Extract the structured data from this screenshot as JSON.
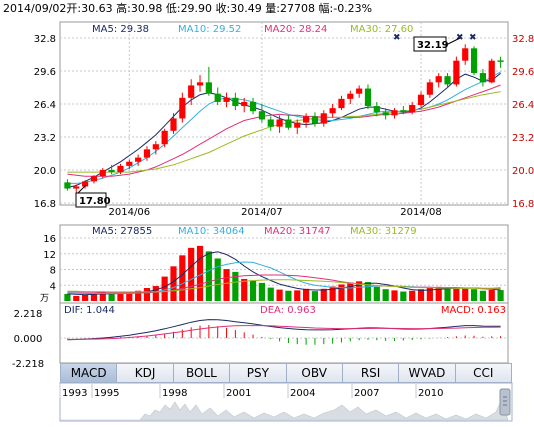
{
  "header": {
    "date": "2014/09/02",
    "open_label": "开:",
    "open": "30.63",
    "high_label": "高:",
    "high": "30.98",
    "low_label": "低:",
    "low": "29.90",
    "close_label": "收:",
    "close": "30.49",
    "volume_label": "量:",
    "volume": "27708",
    "change_label": "幅:",
    "change": "-0.23%"
  },
  "colors": {
    "up": "#ff0000",
    "down": "#00a000",
    "ma5": "#1a2a66",
    "ma10": "#33b0e0",
    "ma20": "#e0307a",
    "ma30": "#99bb22"
  },
  "chart_data": [
    {
      "type": "candlestick",
      "name": "price",
      "ylim": [
        16.8,
        32.8
      ],
      "y_ticks": [
        "32.8",
        "29.6",
        "26.4",
        "23.2",
        "20.0",
        "16.8"
      ],
      "x_ticks": [
        "2014/06",
        "2014/07",
        "2014/08"
      ],
      "legend": [
        {
          "label": "MA5: 29.38",
          "color": "#1a2a66"
        },
        {
          "label": "MA10: 29.52",
          "color": "#33b0e0"
        },
        {
          "label": "MA20: 28.24",
          "color": "#e0307a"
        },
        {
          "label": "MA30: 27.60",
          "color": "#99bb22"
        }
      ],
      "annotations": {
        "low": "17.80",
        "high": "32.19"
      },
      "series": [
        {
          "name": "MA5",
          "values": [
            18.3,
            18.5,
            18.9,
            19.3,
            19.8,
            20.3,
            20.8,
            21.4,
            22.0,
            22.7,
            23.4,
            24.3,
            25.2,
            26.1,
            26.8,
            27.3,
            27.5,
            27.3,
            27.0,
            26.6,
            26.3,
            26.1,
            25.8,
            25.4,
            25.0,
            24.7,
            24.5,
            24.4,
            24.5,
            24.6,
            24.8,
            25.1,
            25.5,
            25.9,
            26.1,
            26.1,
            25.9,
            25.7,
            25.6,
            25.7,
            26.0,
            26.6,
            27.3,
            28.0,
            28.8,
            29.3,
            29.0,
            28.6,
            28.7,
            29.38
          ]
        },
        {
          "name": "MA10",
          "values": [
            18.7,
            18.7,
            18.8,
            19.0,
            19.2,
            19.5,
            19.8,
            20.2,
            20.7,
            21.2,
            21.8,
            22.5,
            23.3,
            24.1,
            24.9,
            25.7,
            26.4,
            26.8,
            27.0,
            26.9,
            26.8,
            26.6,
            26.3,
            26.0,
            25.7,
            25.4,
            25.2,
            25.0,
            24.9,
            24.8,
            24.8,
            24.9,
            25.0,
            25.2,
            25.4,
            25.6,
            25.7,
            25.7,
            25.7,
            25.8,
            25.9,
            26.1,
            26.4,
            26.8,
            27.3,
            27.8,
            28.2,
            28.6,
            29.0,
            29.52
          ]
        },
        {
          "name": "MA20",
          "values": [
            19.6,
            19.5,
            19.4,
            19.4,
            19.4,
            19.4,
            19.5,
            19.6,
            19.8,
            20.0,
            20.3,
            20.7,
            21.1,
            21.5,
            22.0,
            22.5,
            23.0,
            23.5,
            24.0,
            24.4,
            24.8,
            25.0,
            25.2,
            25.3,
            25.4,
            25.3,
            25.3,
            25.2,
            25.2,
            25.1,
            25.1,
            25.1,
            25.1,
            25.1,
            25.2,
            25.3,
            25.4,
            25.4,
            25.5,
            25.6,
            25.7,
            25.9,
            26.1,
            26.4,
            26.7,
            27.0,
            27.3,
            27.6,
            27.9,
            28.24
          ]
        },
        {
          "name": "MA30",
          "values": [
            19.8,
            19.8,
            19.8,
            19.8,
            19.8,
            19.8,
            19.8,
            19.8,
            19.9,
            20.0,
            20.1,
            20.3,
            20.5,
            20.8,
            21.1,
            21.4,
            21.7,
            22.1,
            22.5,
            22.9,
            23.3,
            23.6,
            23.9,
            24.2,
            24.4,
            24.6,
            24.8,
            24.9,
            25.0,
            25.1,
            25.1,
            25.1,
            25.2,
            25.2,
            25.3,
            25.4,
            25.5,
            25.6,
            25.7,
            25.8,
            25.9,
            26.1,
            26.3,
            26.5,
            26.7,
            26.9,
            27.1,
            27.3,
            27.45,
            27.6
          ]
        }
      ],
      "candles": [
        {
          "o": 18.8,
          "h": 19.1,
          "l": 18.0,
          "c": 18.2
        },
        {
          "o": 18.2,
          "h": 18.6,
          "l": 17.8,
          "c": 18.4
        },
        {
          "o": 18.4,
          "h": 19.0,
          "l": 18.2,
          "c": 18.9
        },
        {
          "o": 18.9,
          "h": 19.5,
          "l": 18.7,
          "c": 19.4
        },
        {
          "o": 19.4,
          "h": 20.2,
          "l": 19.2,
          "c": 20.0
        },
        {
          "o": 20.0,
          "h": 20.5,
          "l": 19.6,
          "c": 19.8
        },
        {
          "o": 19.8,
          "h": 20.6,
          "l": 19.6,
          "c": 20.4
        },
        {
          "o": 20.4,
          "h": 21.0,
          "l": 20.1,
          "c": 20.8
        },
        {
          "o": 20.8,
          "h": 21.5,
          "l": 20.4,
          "c": 21.2
        },
        {
          "o": 21.2,
          "h": 22.3,
          "l": 20.9,
          "c": 22.0
        },
        {
          "o": 22.0,
          "h": 22.8,
          "l": 21.5,
          "c": 22.5
        },
        {
          "o": 22.5,
          "h": 24.0,
          "l": 22.2,
          "c": 23.8
        },
        {
          "o": 23.8,
          "h": 25.5,
          "l": 23.5,
          "c": 25.0
        },
        {
          "o": 25.0,
          "h": 27.5,
          "l": 24.6,
          "c": 27.0
        },
        {
          "o": 27.0,
          "h": 28.8,
          "l": 26.3,
          "c": 28.2
        },
        {
          "o": 28.2,
          "h": 29.2,
          "l": 27.6,
          "c": 28.5
        },
        {
          "o": 28.5,
          "h": 30.0,
          "l": 27.2,
          "c": 27.4
        },
        {
          "o": 27.4,
          "h": 28.0,
          "l": 26.3,
          "c": 26.6
        },
        {
          "o": 26.6,
          "h": 27.5,
          "l": 26.1,
          "c": 27.0
        },
        {
          "o": 27.0,
          "h": 27.5,
          "l": 25.8,
          "c": 26.2
        },
        {
          "o": 26.2,
          "h": 27.0,
          "l": 25.6,
          "c": 26.6
        },
        {
          "o": 26.6,
          "h": 27.0,
          "l": 25.4,
          "c": 25.7
        },
        {
          "o": 25.7,
          "h": 26.4,
          "l": 24.6,
          "c": 24.9
        },
        {
          "o": 24.9,
          "h": 25.2,
          "l": 23.8,
          "c": 24.2
        },
        {
          "o": 24.2,
          "h": 25.3,
          "l": 23.6,
          "c": 24.9
        },
        {
          "o": 24.9,
          "h": 25.3,
          "l": 23.9,
          "c": 24.1
        },
        {
          "o": 24.1,
          "h": 24.9,
          "l": 23.5,
          "c": 24.6
        },
        {
          "o": 24.6,
          "h": 25.5,
          "l": 24.1,
          "c": 25.2
        },
        {
          "o": 25.2,
          "h": 25.6,
          "l": 24.2,
          "c": 24.5
        },
        {
          "o": 24.5,
          "h": 25.8,
          "l": 24.2,
          "c": 25.5
        },
        {
          "o": 25.5,
          "h": 26.4,
          "l": 25.1,
          "c": 26.0
        },
        {
          "o": 26.0,
          "h": 27.2,
          "l": 25.8,
          "c": 26.9
        },
        {
          "o": 26.9,
          "h": 27.7,
          "l": 26.4,
          "c": 27.4
        },
        {
          "o": 27.4,
          "h": 28.2,
          "l": 27.0,
          "c": 27.9
        },
        {
          "o": 27.9,
          "h": 28.3,
          "l": 25.9,
          "c": 26.2
        },
        {
          "o": 26.2,
          "h": 26.6,
          "l": 25.2,
          "c": 25.6
        },
        {
          "o": 25.6,
          "h": 26.0,
          "l": 24.9,
          "c": 25.3
        },
        {
          "o": 25.3,
          "h": 26.0,
          "l": 25.0,
          "c": 25.8
        },
        {
          "o": 25.8,
          "h": 26.2,
          "l": 25.4,
          "c": 25.6
        },
        {
          "o": 25.6,
          "h": 26.6,
          "l": 25.4,
          "c": 26.3
        },
        {
          "o": 26.3,
          "h": 27.6,
          "l": 26.1,
          "c": 27.3
        },
        {
          "o": 27.3,
          "h": 28.8,
          "l": 27.0,
          "c": 28.5
        },
        {
          "o": 28.5,
          "h": 29.4,
          "l": 28.0,
          "c": 29.1
        },
        {
          "o": 29.1,
          "h": 29.4,
          "l": 28.0,
          "c": 28.3
        },
        {
          "o": 28.3,
          "h": 31.0,
          "l": 28.1,
          "c": 30.6
        },
        {
          "o": 30.6,
          "h": 32.19,
          "l": 30.2,
          "c": 31.8
        },
        {
          "o": 31.8,
          "h": 32.0,
          "l": 29.2,
          "c": 29.4
        },
        {
          "o": 29.4,
          "h": 29.8,
          "l": 28.1,
          "c": 28.5
        },
        {
          "o": 28.5,
          "h": 30.8,
          "l": 28.4,
          "c": 30.6
        },
        {
          "o": 30.63,
          "h": 30.98,
          "l": 29.9,
          "c": 30.49
        }
      ]
    },
    {
      "type": "bar",
      "name": "volume",
      "ylim": [
        0,
        16
      ],
      "y_ticks": [
        "16",
        "12",
        "8",
        "4"
      ],
      "unit_label": "万",
      "legend": [
        {
          "label": "MA5: 27855",
          "color": "#1a2a66"
        },
        {
          "label": "MA10: 34064",
          "color": "#33b0e0"
        },
        {
          "label": "MA20: 31747",
          "color": "#e0307a"
        },
        {
          "label": "MA30: 31279",
          "color": "#99bb22"
        }
      ],
      "values": [
        1.8,
        1.3,
        1.6,
        1.9,
        2.3,
        1.7,
        2.0,
        2.2,
        2.6,
        3.3,
        3.8,
        6.2,
        8.8,
        11.6,
        13.5,
        14.0,
        12.6,
        10.8,
        8.1,
        7.4,
        5.6,
        5.1,
        4.6,
        3.4,
        2.9,
        2.6,
        2.7,
        3.1,
        2.5,
        3.1,
        3.7,
        4.2,
        4.7,
        5.0,
        4.8,
        3.6,
        3.0,
        2.7,
        2.4,
        2.6,
        3.0,
        3.4,
        3.6,
        3.1,
        3.2,
        3.4,
        3.0,
        2.6,
        2.8,
        2.77
      ],
      "series": [
        {
          "name": "MA5",
          "values": [
            1.8,
            1.7,
            1.6,
            1.7,
            1.8,
            1.8,
            1.9,
            2.0,
            2.2,
            2.4,
            2.8,
            3.6,
            4.9,
            6.7,
            8.8,
            10.8,
            12.1,
            12.5,
            11.8,
            10.6,
            8.9,
            7.4,
            6.2,
            5.2,
            4.3,
            3.7,
            3.2,
            2.9,
            2.8,
            2.8,
            3.0,
            3.3,
            3.6,
            4.1,
            4.5,
            4.5,
            4.2,
            3.8,
            3.3,
            2.9,
            2.7,
            2.8,
            3.0,
            3.1,
            3.3,
            3.3,
            3.3,
            3.1,
            3.0,
            2.79
          ]
        },
        {
          "name": "MA10",
          "values": [
            2.0,
            2.0,
            1.9,
            1.9,
            1.9,
            1.9,
            1.9,
            1.9,
            2.0,
            2.1,
            2.3,
            2.8,
            3.4,
            4.4,
            5.5,
            6.6,
            7.7,
            8.7,
            9.3,
            9.7,
            9.9,
            9.8,
            9.1,
            8.4,
            7.4,
            6.3,
            5.3,
            4.5,
            4.0,
            3.7,
            3.5,
            3.4,
            3.3,
            3.5,
            3.6,
            3.8,
            3.8,
            3.8,
            3.7,
            3.6,
            3.5,
            3.5,
            3.4,
            3.4,
            3.3,
            3.3,
            3.3,
            3.2,
            3.2,
            3.41
          ]
        },
        {
          "name": "MA20",
          "values": [
            2.3,
            2.3,
            2.2,
            2.2,
            2.1,
            2.1,
            2.1,
            2.1,
            2.1,
            2.1,
            2.2,
            2.4,
            2.7,
            3.2,
            3.7,
            4.3,
            4.9,
            5.5,
            5.9,
            6.2,
            6.4,
            6.5,
            6.6,
            6.6,
            6.6,
            6.5,
            6.4,
            6.2,
            5.9,
            5.6,
            5.3,
            4.9,
            4.6,
            4.3,
            4.1,
            3.9,
            3.8,
            3.7,
            3.6,
            3.5,
            3.5,
            3.5,
            3.4,
            3.4,
            3.4,
            3.3,
            3.3,
            3.2,
            3.2,
            3.17
          ]
        },
        {
          "name": "MA30",
          "values": [
            2.5,
            2.5,
            2.4,
            2.4,
            2.4,
            2.3,
            2.3,
            2.3,
            2.3,
            2.3,
            2.3,
            2.4,
            2.6,
            2.8,
            3.1,
            3.4,
            3.8,
            4.2,
            4.5,
            4.8,
            5.0,
            5.2,
            5.3,
            5.4,
            5.4,
            5.4,
            5.3,
            5.2,
            5.1,
            5.0,
            4.9,
            4.7,
            4.5,
            4.3,
            4.1,
            3.9,
            3.8,
            3.7,
            3.6,
            3.5,
            3.4,
            3.4,
            3.3,
            3.3,
            3.2,
            3.2,
            3.2,
            3.1,
            3.1,
            3.13
          ]
        }
      ]
    },
    {
      "type": "bar",
      "name": "macd",
      "ylim": [
        -2.218,
        2.218
      ],
      "y_ticks": [
        "2.218",
        "0.000",
        "-2.218"
      ],
      "legend": [
        {
          "label": "DIF: 1.044",
          "color": "#1a2a66"
        },
        {
          "label": "DEA: 0.963",
          "color": "#e0307a"
        },
        {
          "label": "MACD: 0.163",
          "color": "#ff0000"
        }
      ],
      "values": [
        -0.05,
        -0.04,
        -0.02,
        0.0,
        0.03,
        0.05,
        0.08,
        0.1,
        0.14,
        0.2,
        0.28,
        0.4,
        0.55,
        0.75,
        0.95,
        1.1,
        1.15,
        1.05,
        0.9,
        0.7,
        0.5,
        0.3,
        0.1,
        -0.1,
        -0.3,
        -0.45,
        -0.55,
        -0.6,
        -0.6,
        -0.55,
        -0.5,
        -0.4,
        -0.3,
        -0.2,
        -0.15,
        -0.2,
        -0.25,
        -0.25,
        -0.22,
        -0.18,
        -0.12,
        -0.05,
        0.02,
        0.08,
        0.15,
        0.22,
        0.2,
        0.12,
        0.15,
        0.163
      ],
      "series": [
        {
          "name": "DIF",
          "values": [
            -0.15,
            -0.13,
            -0.1,
            -0.05,
            0.0,
            0.07,
            0.15,
            0.25,
            0.37,
            0.5,
            0.65,
            0.82,
            1.0,
            1.2,
            1.4,
            1.55,
            1.63,
            1.62,
            1.55,
            1.45,
            1.35,
            1.25,
            1.13,
            1.02,
            0.92,
            0.84,
            0.78,
            0.74,
            0.72,
            0.72,
            0.74,
            0.78,
            0.82,
            0.87,
            0.9,
            0.9,
            0.87,
            0.83,
            0.8,
            0.79,
            0.8,
            0.84,
            0.9,
            0.96,
            1.03,
            1.1,
            1.1,
            1.06,
            1.05,
            1.044
          ]
        },
        {
          "name": "DEA",
          "values": [
            -0.12,
            -0.12,
            -0.11,
            -0.1,
            -0.08,
            -0.05,
            -0.01,
            0.04,
            0.11,
            0.18,
            0.27,
            0.36,
            0.46,
            0.57,
            0.68,
            0.8,
            0.9,
            0.98,
            1.04,
            1.08,
            1.1,
            1.1,
            1.1,
            1.08,
            1.05,
            1.01,
            0.97,
            0.93,
            0.89,
            0.86,
            0.84,
            0.83,
            0.83,
            0.83,
            0.84,
            0.85,
            0.85,
            0.85,
            0.84,
            0.83,
            0.83,
            0.83,
            0.84,
            0.86,
            0.88,
            0.91,
            0.93,
            0.95,
            0.96,
            0.963
          ]
        }
      ]
    }
  ],
  "tabs": [
    "MACD",
    "KDJ",
    "BOLL",
    "PSY",
    "OBV",
    "RSI",
    "WVAD",
    "CCI"
  ],
  "timeline": {
    "years": [
      "1993",
      "1995",
      "1998",
      "2001",
      "2004",
      "2007",
      "2010"
    ]
  }
}
